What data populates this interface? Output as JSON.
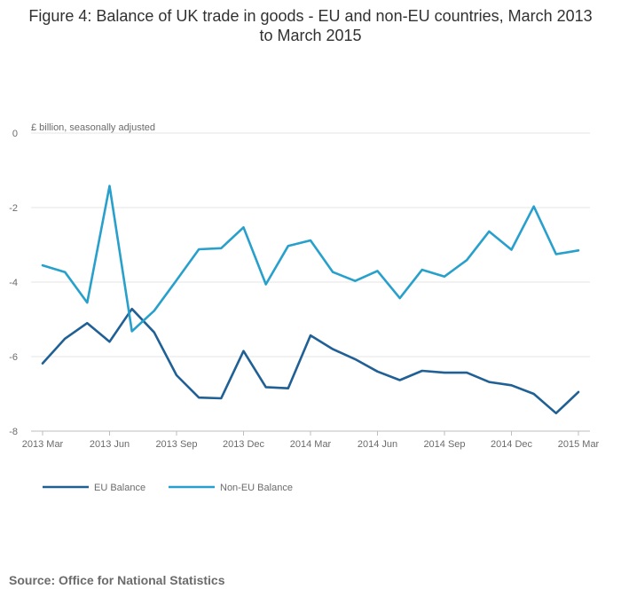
{
  "title": "Figure 4: Balance of UK trade in goods - EU and non-EU countries, March 2013 to March 2015",
  "source": "Source: Office for National Statistics",
  "chart_data": {
    "type": "line",
    "y_unit_label": "£ billion, seasonally adjusted",
    "ylim": [
      -8,
      0
    ],
    "yticks": [
      0,
      -2,
      -4,
      -6,
      -8
    ],
    "x": [
      "2013 Mar",
      "2013 Apr",
      "2013 May",
      "2013 Jun",
      "2013 Jul",
      "2013 Aug",
      "2013 Sep",
      "2013 Oct",
      "2013 Nov",
      "2013 Dec",
      "2014 Jan",
      "2014 Feb",
      "2014 Mar",
      "2014 Apr",
      "2014 May",
      "2014 Jun",
      "2014 Jul",
      "2014 Aug",
      "2014 Sep",
      "2014 Oct",
      "2014 Nov",
      "2014 Dec",
      "2015 Jan",
      "2015 Feb",
      "2015 Mar"
    ],
    "xticks": [
      "2013 Mar",
      "2013 Jun",
      "2013 Sep",
      "2013 Dec",
      "2014 Mar",
      "2014 Jun",
      "2014 Sep",
      "2014 Dec",
      "2015 Mar"
    ],
    "grid": true,
    "legend_position": "bottom-left",
    "series": [
      {
        "name": "EU Balance",
        "color": "#206095",
        "values": [
          -6.18,
          -5.52,
          -5.1,
          -5.6,
          -4.72,
          -5.35,
          -6.5,
          -7.1,
          -7.12,
          -5.85,
          -6.82,
          -6.85,
          -5.43,
          -5.8,
          -6.07,
          -6.4,
          -6.63,
          -6.38,
          -6.43,
          -6.43,
          -6.68,
          -6.77,
          -7.0,
          -7.52,
          -6.95
        ]
      },
      {
        "name": "Non-EU Balance",
        "color": "#27a0cc",
        "values": [
          -3.55,
          -3.73,
          -4.55,
          -1.42,
          -5.32,
          -4.77,
          -3.95,
          -3.12,
          -3.09,
          -2.53,
          -4.06,
          -3.03,
          -2.88,
          -3.73,
          -3.97,
          -3.7,
          -4.43,
          -3.67,
          -3.85,
          -3.41,
          -2.64,
          -3.13,
          -1.97,
          -3.25,
          -3.15
        ]
      }
    ]
  }
}
